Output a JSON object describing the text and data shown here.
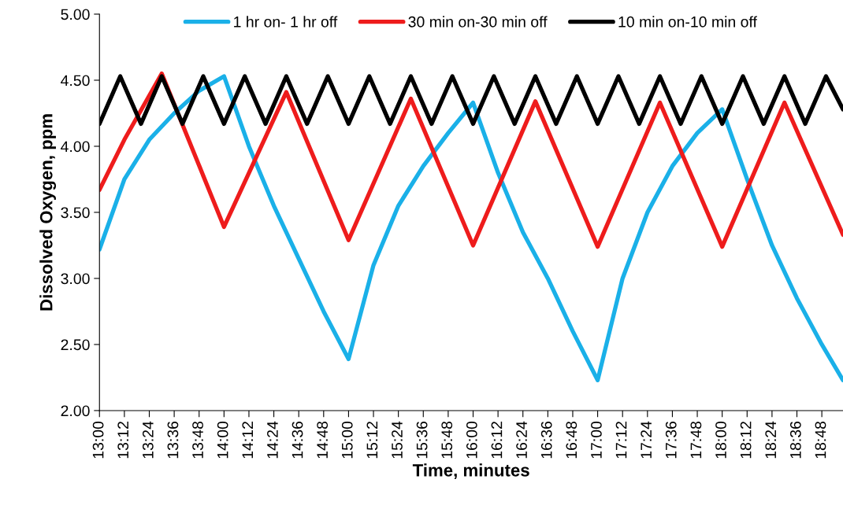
{
  "chart_data": {
    "type": "line",
    "xlabel": "Time, minutes",
    "ylabel": "Dissolved Oxygen, ppm",
    "xlim": [
      13.0,
      18.97
    ],
    "ylim": [
      2.0,
      5.0
    ],
    "yticks": [
      {
        "value": 2.0,
        "label": "2.00"
      },
      {
        "value": 2.5,
        "label": "2.50"
      },
      {
        "value": 3.0,
        "label": "3.00"
      },
      {
        "value": 3.5,
        "label": "3.50"
      },
      {
        "value": 4.0,
        "label": "4.00"
      },
      {
        "value": 4.5,
        "label": "4.50"
      },
      {
        "value": 5.0,
        "label": "5.00"
      }
    ],
    "xticks": [
      {
        "value": 13.0,
        "label": "13:00"
      },
      {
        "value": 13.2,
        "label": "13:12"
      },
      {
        "value": 13.4,
        "label": "13:24"
      },
      {
        "value": 13.6,
        "label": "13:36"
      },
      {
        "value": 13.8,
        "label": "13:48"
      },
      {
        "value": 14.0,
        "label": "14:00"
      },
      {
        "value": 14.2,
        "label": "14:12"
      },
      {
        "value": 14.4,
        "label": "14:24"
      },
      {
        "value": 14.6,
        "label": "14:36"
      },
      {
        "value": 14.8,
        "label": "14:48"
      },
      {
        "value": 15.0,
        "label": "15:00"
      },
      {
        "value": 15.2,
        "label": "15:12"
      },
      {
        "value": 15.4,
        "label": "15:24"
      },
      {
        "value": 15.6,
        "label": "15:36"
      },
      {
        "value": 15.8,
        "label": "15:48"
      },
      {
        "value": 16.0,
        "label": "16:00"
      },
      {
        "value": 16.2,
        "label": "16:12"
      },
      {
        "value": 16.4,
        "label": "16:24"
      },
      {
        "value": 16.6,
        "label": "16:36"
      },
      {
        "value": 16.8,
        "label": "16:48"
      },
      {
        "value": 17.0,
        "label": "17:00"
      },
      {
        "value": 17.2,
        "label": "17:12"
      },
      {
        "value": 17.4,
        "label": "17:24"
      },
      {
        "value": 17.6,
        "label": "17:36"
      },
      {
        "value": 17.8,
        "label": "17:48"
      },
      {
        "value": 18.0,
        "label": "18:00"
      },
      {
        "value": 18.2,
        "label": "18:12"
      },
      {
        "value": 18.4,
        "label": "18:24"
      },
      {
        "value": 18.6,
        "label": "18:36"
      },
      {
        "value": 18.8,
        "label": "18:48"
      }
    ],
    "grid": false,
    "legend": "top",
    "marker": "none",
    "line_style": "solid",
    "series": [
      {
        "name": "1 hr on- 1 hr off",
        "color": "#1ab0e8",
        "x": [
          13.0,
          13.2,
          13.4,
          13.6,
          13.8,
          14.0,
          14.2,
          14.4,
          14.6,
          14.8,
          15.0,
          15.2,
          15.4,
          15.6,
          15.8,
          16.0,
          16.2,
          16.4,
          16.6,
          16.8,
          17.0,
          17.2,
          17.4,
          17.6,
          17.8,
          18.0,
          18.2,
          18.4,
          18.6,
          18.8,
          18.97
        ],
        "values": [
          3.22,
          3.75,
          4.05,
          4.25,
          4.42,
          4.53,
          4.0,
          3.55,
          3.15,
          2.75,
          2.39,
          3.1,
          3.55,
          3.85,
          4.1,
          4.33,
          3.8,
          3.35,
          3.0,
          2.6,
          2.23,
          3.0,
          3.5,
          3.85,
          4.1,
          4.28,
          3.75,
          3.25,
          2.85,
          2.5,
          2.23
        ]
      },
      {
        "name": "30 min on-30 min off",
        "color": "#ee1c1c",
        "x": [
          13.0,
          13.2,
          13.5,
          14.0,
          14.5,
          15.0,
          15.5,
          16.0,
          16.5,
          17.0,
          17.5,
          18.0,
          18.5,
          18.97
        ],
        "values": [
          3.67,
          4.05,
          4.55,
          3.39,
          4.41,
          3.29,
          4.36,
          3.25,
          4.34,
          3.24,
          4.33,
          3.24,
          4.33,
          3.33
        ]
      },
      {
        "name": "10 min on-10 min off",
        "color": "#000000",
        "x": [
          13.0,
          13.1667,
          13.3333,
          13.5,
          13.6667,
          13.8333,
          14.0,
          14.1667,
          14.3333,
          14.5,
          14.6667,
          14.8333,
          15.0,
          15.1667,
          15.3333,
          15.5,
          15.6667,
          15.8333,
          16.0,
          16.1667,
          16.3333,
          16.5,
          16.6667,
          16.8333,
          17.0,
          17.1667,
          17.3333,
          17.5,
          17.6667,
          17.8333,
          18.0,
          18.1667,
          18.3333,
          18.5,
          18.6667,
          18.8333,
          18.97
        ],
        "values": [
          4.17,
          4.53,
          4.17,
          4.53,
          4.17,
          4.53,
          4.17,
          4.53,
          4.17,
          4.53,
          4.17,
          4.53,
          4.17,
          4.53,
          4.17,
          4.53,
          4.17,
          4.53,
          4.17,
          4.53,
          4.17,
          4.53,
          4.17,
          4.53,
          4.17,
          4.53,
          4.17,
          4.53,
          4.17,
          4.53,
          4.17,
          4.53,
          4.17,
          4.53,
          4.17,
          4.53,
          4.28
        ]
      }
    ]
  }
}
